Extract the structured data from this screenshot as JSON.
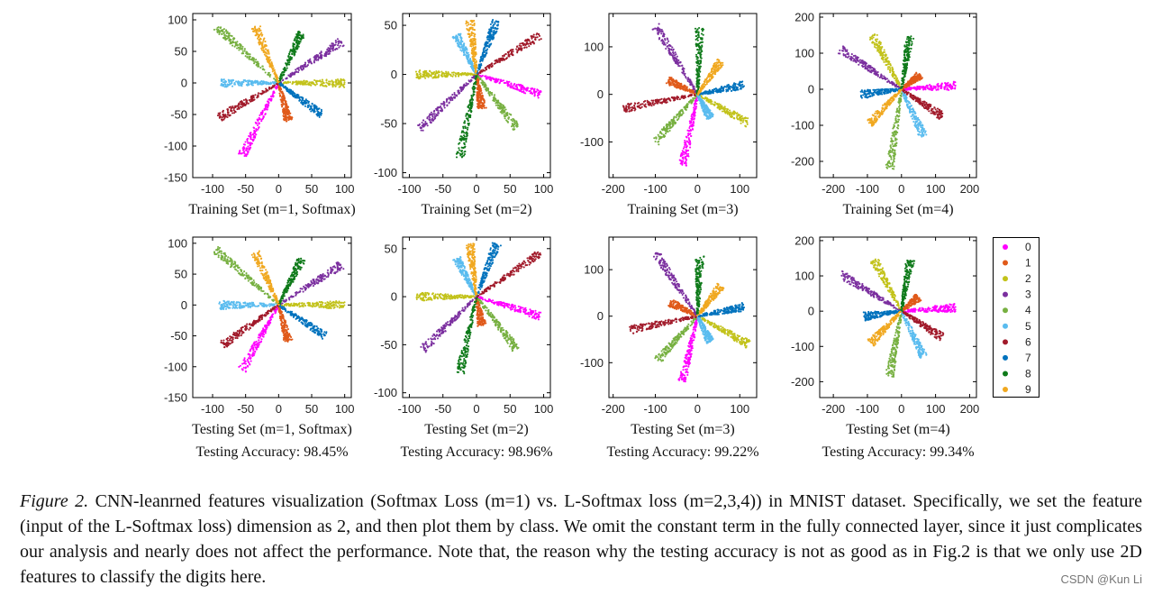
{
  "colors": {
    "0": "#ff00ff",
    "1": "#e05a1a",
    "2": "#c2c21a",
    "3": "#7b2f9f",
    "4": "#77b041",
    "5": "#5abcef",
    "6": "#a11a2a",
    "7": "#0072bd",
    "8": "#0f7a1a",
    "9": "#f0a820"
  },
  "legend": {
    "entries": [
      "0",
      "1",
      "2",
      "3",
      "4",
      "5",
      "6",
      "7",
      "8",
      "9"
    ]
  },
  "caption": {
    "label": "Figure 2.",
    "text": "CNN-leanrned features visualization (Softmax Loss (m=1) vs. L-Softmax loss (m=2,3,4)) in MNIST dataset. Specifically, we set the feature (input of the L-Softmax loss) dimension as 2, and then plot them by class. We omit the constant term in the fully connected layer, since it just complicates our analysis and nearly does not affect the performance. Note that, the reason why the testing accuracy is not as good as in Fig.2 is that we only use 2D features to classify the digits here."
  },
  "watermark": "CSDN @Kun Li",
  "chart_data": [
    {
      "type": "scatter",
      "title": "Training Set (m=1, Softmax)",
      "xlim": [
        -130,
        110
      ],
      "ylim": [
        -150,
        110
      ],
      "xticks": [
        -100,
        -50,
        0,
        50,
        100
      ],
      "yticks": [
        -150,
        -100,
        -50,
        0,
        50,
        100
      ],
      "series": [
        {
          "name": "0",
          "x": [
            0,
            -55
          ],
          "y": [
            0,
            -115
          ]
        },
        {
          "name": "1",
          "x": [
            0,
            15
          ],
          "y": [
            0,
            -60
          ]
        },
        {
          "name": "2",
          "x": [
            0,
            100
          ],
          "y": [
            0,
            0
          ]
        },
        {
          "name": "3",
          "x": [
            0,
            95
          ],
          "y": [
            0,
            65
          ]
        },
        {
          "name": "4",
          "x": [
            0,
            -95
          ],
          "y": [
            0,
            90
          ]
        },
        {
          "name": "5",
          "x": [
            0,
            -90
          ],
          "y": [
            0,
            0
          ]
        },
        {
          "name": "6",
          "x": [
            0,
            -90
          ],
          "y": [
            0,
            -55
          ]
        },
        {
          "name": "7",
          "x": [
            0,
            65
          ],
          "y": [
            0,
            -50
          ]
        },
        {
          "name": "8",
          "x": [
            0,
            35
          ],
          "y": [
            0,
            80
          ]
        },
        {
          "name": "9",
          "x": [
            0,
            -35
          ],
          "y": [
            0,
            90
          ]
        }
      ]
    },
    {
      "type": "scatter",
      "title": "Training Set (m=2)",
      "xlim": [
        -110,
        110
      ],
      "ylim": [
        -105,
        62
      ],
      "xticks": [
        -100,
        -50,
        0,
        50,
        100
      ],
      "yticks": [
        -100,
        -50,
        0,
        50
      ],
      "series": [
        {
          "name": "0",
          "x": [
            0,
            95
          ],
          "y": [
            0,
            -20
          ]
        },
        {
          "name": "1",
          "x": [
            0,
            8
          ],
          "y": [
            0,
            -35
          ]
        },
        {
          "name": "2",
          "x": [
            0,
            -90
          ],
          "y": [
            0,
            0
          ]
        },
        {
          "name": "3",
          "x": [
            0,
            -85
          ],
          "y": [
            0,
            -55
          ]
        },
        {
          "name": "4",
          "x": [
            0,
            60
          ],
          "y": [
            0,
            -55
          ]
        },
        {
          "name": "5",
          "x": [
            0,
            -30
          ],
          "y": [
            0,
            40
          ]
        },
        {
          "name": "6",
          "x": [
            0,
            95
          ],
          "y": [
            0,
            40
          ]
        },
        {
          "name": "7",
          "x": [
            0,
            30
          ],
          "y": [
            0,
            55
          ]
        },
        {
          "name": "8",
          "x": [
            0,
            -25
          ],
          "y": [
            0,
            -85
          ]
        },
        {
          "name": "9",
          "x": [
            0,
            -10
          ],
          "y": [
            0,
            55
          ]
        }
      ]
    },
    {
      "type": "scatter",
      "title": "Training Set (m=3)",
      "xlim": [
        -210,
        140
      ],
      "ylim": [
        -175,
        170
      ],
      "xticks": [
        -200,
        -100,
        0,
        100
      ],
      "yticks": [
        -100,
        0,
        100
      ],
      "series": [
        {
          "name": "0",
          "x": [
            0,
            -35
          ],
          "y": [
            0,
            -150
          ]
        },
        {
          "name": "1",
          "x": [
            0,
            -70
          ],
          "y": [
            0,
            30
          ]
        },
        {
          "name": "2",
          "x": [
            0,
            120
          ],
          "y": [
            0,
            -60
          ]
        },
        {
          "name": "3",
          "x": [
            0,
            -100
          ],
          "y": [
            0,
            145
          ]
        },
        {
          "name": "4",
          "x": [
            0,
            -100
          ],
          "y": [
            0,
            -100
          ]
        },
        {
          "name": "5",
          "x": [
            0,
            30
          ],
          "y": [
            0,
            -50
          ]
        },
        {
          "name": "6",
          "x": [
            0,
            -175
          ],
          "y": [
            0,
            -30
          ]
        },
        {
          "name": "7",
          "x": [
            0,
            110
          ],
          "y": [
            0,
            20
          ]
        },
        {
          "name": "8",
          "x": [
            0,
            5
          ],
          "y": [
            0,
            140
          ]
        },
        {
          "name": "9",
          "x": [
            0,
            55
          ],
          "y": [
            0,
            70
          ]
        }
      ]
    },
    {
      "type": "scatter",
      "title": "Training Set (m=4)",
      "xlim": [
        -240,
        220
      ],
      "ylim": [
        -245,
        210
      ],
      "xticks": [
        -200,
        -100,
        0,
        100,
        200
      ],
      "yticks": [
        -200,
        -100,
        0,
        100,
        200
      ],
      "series": [
        {
          "name": "0",
          "x": [
            0,
            160
          ],
          "y": [
            0,
            10
          ]
        },
        {
          "name": "1",
          "x": [
            0,
            55
          ],
          "y": [
            0,
            40
          ]
        },
        {
          "name": "2",
          "x": [
            0,
            -85
          ],
          "y": [
            0,
            150
          ]
        },
        {
          "name": "3",
          "x": [
            0,
            -180
          ],
          "y": [
            0,
            110
          ]
        },
        {
          "name": "4",
          "x": [
            0,
            -35
          ],
          "y": [
            0,
            -220
          ]
        },
        {
          "name": "5",
          "x": [
            0,
            65
          ],
          "y": [
            0,
            -130
          ]
        },
        {
          "name": "6",
          "x": [
            0,
            120
          ],
          "y": [
            0,
            -75
          ]
        },
        {
          "name": "7",
          "x": [
            0,
            -120
          ],
          "y": [
            0,
            -15
          ]
        },
        {
          "name": "8",
          "x": [
            0,
            25
          ],
          "y": [
            0,
            150
          ]
        },
        {
          "name": "9",
          "x": [
            0,
            -95
          ],
          "y": [
            0,
            -95
          ]
        }
      ]
    },
    {
      "type": "scatter",
      "title": "Testing Set (m=1, Softmax)",
      "annotation": "Testing Accuracy: 98.45%",
      "xlim": [
        -130,
        110
      ],
      "ylim": [
        -150,
        110
      ],
      "xticks": [
        -100,
        -50,
        0,
        50,
        100
      ],
      "yticks": [
        -150,
        -100,
        -50,
        0,
        50,
        100
      ],
      "series": [
        {
          "name": "0",
          "x": [
            0,
            -55
          ],
          "y": [
            0,
            -105
          ]
        },
        {
          "name": "1",
          "x": [
            0,
            15
          ],
          "y": [
            0,
            -60
          ]
        },
        {
          "name": "2",
          "x": [
            0,
            100
          ],
          "y": [
            0,
            0
          ]
        },
        {
          "name": "3",
          "x": [
            0,
            95
          ],
          "y": [
            0,
            65
          ]
        },
        {
          "name": "4",
          "x": [
            0,
            -95
          ],
          "y": [
            0,
            90
          ]
        },
        {
          "name": "5",
          "x": [
            0,
            -90
          ],
          "y": [
            0,
            0
          ]
        },
        {
          "name": "6",
          "x": [
            0,
            -85
          ],
          "y": [
            0,
            -65
          ]
        },
        {
          "name": "7",
          "x": [
            0,
            70
          ],
          "y": [
            0,
            -50
          ]
        },
        {
          "name": "8",
          "x": [
            0,
            35
          ],
          "y": [
            0,
            75
          ]
        },
        {
          "name": "9",
          "x": [
            0,
            -35
          ],
          "y": [
            0,
            85
          ]
        }
      ]
    },
    {
      "type": "scatter",
      "title": "Testing Set (m=2)",
      "annotation": "Testing Accuracy: 98.96%",
      "xlim": [
        -110,
        110
      ],
      "ylim": [
        -105,
        62
      ],
      "xticks": [
        -100,
        -50,
        0,
        50,
        100
      ],
      "yticks": [
        -100,
        -50,
        0,
        50
      ],
      "series": [
        {
          "name": "0",
          "x": [
            0,
            95
          ],
          "y": [
            0,
            -20
          ]
        },
        {
          "name": "1",
          "x": [
            0,
            8
          ],
          "y": [
            0,
            -30
          ]
        },
        {
          "name": "2",
          "x": [
            0,
            -90
          ],
          "y": [
            0,
            0
          ]
        },
        {
          "name": "3",
          "x": [
            0,
            -80
          ],
          "y": [
            0,
            -55
          ]
        },
        {
          "name": "4",
          "x": [
            0,
            60
          ],
          "y": [
            0,
            -55
          ]
        },
        {
          "name": "5",
          "x": [
            0,
            -30
          ],
          "y": [
            0,
            40
          ]
        },
        {
          "name": "6",
          "x": [
            0,
            95
          ],
          "y": [
            0,
            45
          ]
        },
        {
          "name": "7",
          "x": [
            0,
            30
          ],
          "y": [
            0,
            55
          ]
        },
        {
          "name": "8",
          "x": [
            0,
            -25
          ],
          "y": [
            0,
            -80
          ]
        },
        {
          "name": "9",
          "x": [
            0,
            -10
          ],
          "y": [
            0,
            55
          ]
        }
      ]
    },
    {
      "type": "scatter",
      "title": "Testing Set (m=3)",
      "annotation": "Testing Accuracy: 99.22%",
      "xlim": [
        -210,
        140
      ],
      "ylim": [
        -175,
        170
      ],
      "xticks": [
        -200,
        -100,
        0,
        100
      ],
      "yticks": [
        -100,
        0,
        100
      ],
      "series": [
        {
          "name": "0",
          "x": [
            0,
            -35
          ],
          "y": [
            0,
            -140
          ]
        },
        {
          "name": "1",
          "x": [
            0,
            -65
          ],
          "y": [
            0,
            30
          ]
        },
        {
          "name": "2",
          "x": [
            0,
            120
          ],
          "y": [
            0,
            -60
          ]
        },
        {
          "name": "3",
          "x": [
            0,
            -100
          ],
          "y": [
            0,
            135
          ]
        },
        {
          "name": "4",
          "x": [
            0,
            -95
          ],
          "y": [
            0,
            -95
          ]
        },
        {
          "name": "5",
          "x": [
            0,
            30
          ],
          "y": [
            0,
            -55
          ]
        },
        {
          "name": "6",
          "x": [
            0,
            -165
          ],
          "y": [
            0,
            -30
          ]
        },
        {
          "name": "7",
          "x": [
            0,
            110
          ],
          "y": [
            0,
            20
          ]
        },
        {
          "name": "8",
          "x": [
            0,
            5
          ],
          "y": [
            0,
            130
          ]
        },
        {
          "name": "9",
          "x": [
            0,
            55
          ],
          "y": [
            0,
            65
          ]
        }
      ]
    },
    {
      "type": "scatter",
      "title": "Testing Set (m=4)",
      "annotation": "Testing Accuracy: 99.34%",
      "xlim": [
        -240,
        220
      ],
      "ylim": [
        -245,
        210
      ],
      "xticks": [
        -200,
        -100,
        0,
        100,
        200
      ],
      "yticks": [
        -200,
        -100,
        0,
        100,
        200
      ],
      "series": [
        {
          "name": "0",
          "x": [
            0,
            160
          ],
          "y": [
            0,
            10
          ]
        },
        {
          "name": "1",
          "x": [
            0,
            50
          ],
          "y": [
            0,
            40
          ]
        },
        {
          "name": "2",
          "x": [
            0,
            -80
          ],
          "y": [
            0,
            145
          ]
        },
        {
          "name": "3",
          "x": [
            0,
            -180
          ],
          "y": [
            0,
            105
          ]
        },
        {
          "name": "4",
          "x": [
            0,
            -35
          ],
          "y": [
            0,
            -185
          ]
        },
        {
          "name": "5",
          "x": [
            0,
            65
          ],
          "y": [
            0,
            -130
          ]
        },
        {
          "name": "6",
          "x": [
            0,
            120
          ],
          "y": [
            0,
            -75
          ]
        },
        {
          "name": "7",
          "x": [
            0,
            -110
          ],
          "y": [
            0,
            -15
          ]
        },
        {
          "name": "8",
          "x": [
            0,
            25
          ],
          "y": [
            0,
            145
          ]
        },
        {
          "name": "9",
          "x": [
            0,
            -90
          ],
          "y": [
            0,
            -90
          ]
        }
      ]
    }
  ]
}
